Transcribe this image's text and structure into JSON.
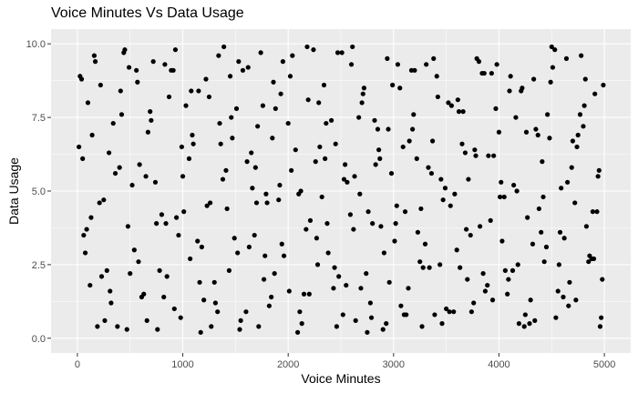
{
  "chart_data": {
    "type": "scatter",
    "title": "Voice Minutes Vs Data Usage",
    "xlabel": "Voice Minutes",
    "ylabel": "Data Usage",
    "xlim": [
      -250,
      5250
    ],
    "ylim": [
      -0.5,
      10.5
    ],
    "x_ticks": [
      0,
      1000,
      2000,
      3000,
      4000,
      5000
    ],
    "y_ticks": [
      0,
      2.5,
      5,
      7.5,
      10
    ],
    "x_tick_labels": [
      "0",
      "1000",
      "2000",
      "3000",
      "4000",
      "5000"
    ],
    "y_tick_labels": [
      "0.0",
      "2.5",
      "5.0",
      "7.5",
      "10.0"
    ],
    "grid": true,
    "legend": "none",
    "background_color": "#ebebeb",
    "grid_color": "#ffffff",
    "point_color": "#000000",
    "x": [
      40,
      88,
      160,
      230,
      300,
      380,
      450,
      520,
      610,
      690,
      760,
      840,
      910,
      990,
      1070,
      1150,
      1230,
      1310,
      1390,
      1470,
      1550,
      1630,
      1710,
      1790,
      1870,
      1950,
      2030,
      2110,
      2190,
      2270,
      2350,
      2430,
      2510,
      2590,
      2670,
      2750,
      2830,
      2910,
      2990,
      3070,
      3150,
      3230,
      3310,
      3390,
      3470,
      3550,
      3630,
      3710,
      3790,
      3870,
      3950,
      4030,
      4110,
      4190,
      4270,
      4350,
      4430,
      4510,
      4590,
      4670,
      4750,
      4830,
      4910,
      4970,
      25,
      120,
      210,
      340,
      470,
      560,
      650,
      780,
      870,
      960,
      1100,
      1200,
      1340,
      1420,
      1510,
      1600,
      1690,
      1780,
      1860,
      1940,
      2070,
      2150,
      2240,
      2320,
      2410,
      2480,
      2560,
      2640,
      2720,
      2800,
      2870,
      2960,
      3040,
      3110,
      3190,
      3270,
      3360,
      3440,
      3520,
      3600,
      3680,
      3760,
      3840,
      3920,
      4000,
      4090,
      4170,
      4250,
      4330,
      4400,
      4480,
      4560,
      4640,
      4720,
      4800,
      4880,
      4950,
      60,
      140,
      260,
      410,
      500,
      590,
      720,
      820,
      940,
      1030,
      1180,
      1270,
      1360,
      1450,
      1520,
      1660,
      1740,
      1820,
      1910,
      2000,
      2090,
      2170,
      2260,
      2340,
      2440,
      2530,
      2610,
      2690,
      2760,
      2850,
      2930,
      3010,
      3090,
      3170,
      3250,
      3330,
      3420,
      3500,
      3580,
      3660,
      3740,
      3820,
      3900,
      3980,
      4060,
      4140,
      4220,
      4300,
      4380,
      4460,
      4540,
      4620,
      4700,
      4780,
      4860,
      4940,
      15,
      100,
      190,
      280,
      360,
      440,
      540,
      630,
      700,
      800,
      890,
      980,
      1060,
      1140,
      1220,
      1300,
      1380,
      1460,
      1540,
      1620,
      1700,
      1770,
      1850,
      1930,
      2010,
      2100,
      2180,
      2280,
      2360,
      2460,
      2540,
      2620,
      2700,
      2780,
      2860,
      2940,
      3020,
      3100,
      3180,
      3260,
      3340,
      3410,
      3490,
      3570,
      3650,
      3730,
      3810,
      3890,
      3970,
      4050,
      4130,
      4210,
      4290,
      4370,
      4450,
      4530,
      4610,
      4690,
      4770,
      4850,
      4930,
      4990,
      75,
      170,
      250,
      320,
      420,
      480,
      570,
      660,
      740,
      850,
      930,
      1010,
      1090,
      1160,
      1250,
      1330,
      1410,
      1490,
      1570,
      1650,
      1720,
      1800,
      1880,
      1960,
      2040,
      2120,
      2200,
      2290,
      2370,
      2450,
      2520,
      2600,
      2680,
      2740,
      2820,
      2900,
      2980,
      3060,
      3140,
      3220,
      3300,
      3380,
      3460,
      3540,
      3620,
      3700,
      3780,
      3860,
      3940,
      4020,
      4100,
      4180,
      4260,
      4340,
      4420,
      4500,
      4580,
      4660,
      4740,
      4820,
      4900,
      4960,
      50,
      130,
      220,
      310,
      400,
      490,
      580,
      670,
      750,
      830,
      920,
      1000,
      1080,
      1170,
      1260,
      1350,
      1440,
      1530,
      1610,
      1680,
      1760,
      1840,
      1920,
      2020,
      2130,
      2210,
      2300,
      2380,
      2470,
      2550,
      2630,
      2710,
      2790,
      2880,
      2950,
      3030,
      3120,
      3200,
      3280,
      3370,
      3450,
      3530,
      3610,
      3690,
      3770,
      3850,
      3930,
      4010,
      4080,
      4160,
      4240,
      4320,
      4410,
      4490,
      4570,
      4650,
      4730,
      4810,
      4890,
      4980
    ],
    "y": [
      8.8,
      3.7,
      9.6,
      2.1,
      6.3,
      0.4,
      9.8,
      5.2,
      1.4,
      7.7,
      0.3,
      3.9,
      9.1,
      6.5,
      2.7,
      8.4,
      4.5,
      1.2,
      9.9,
      6.8,
      0.6,
      3.1,
      7.2,
      4.9,
      2.2,
      9.4,
      5.7,
      0.9,
      8.1,
      3.4,
      6.1,
      1.7,
      9.7,
      4.2,
      7.5,
      0.2,
      5.9,
      2.9,
      8.6,
      1.1,
      6.7,
      3.6,
      9.3,
      0.8,
      4.7,
      7.9,
      2.4,
      5.4,
      9.5,
      1.6,
      6.2,
      3.3,
      8.9,
      0.5,
      4.1,
      7.1,
      2.6,
      9.2,
      5.1,
      1.9,
      6.9,
      3.8,
      8.3,
      0.7,
      8.9,
      1.8,
      4.6,
      7.3,
      0.3,
      9.1,
      5.5,
      2.3,
      8.2,
      3.5,
      6.6,
      1.3,
      9.6,
      4.4,
      7.8,
      0.9,
      5.8,
      2.8,
      8.7,
      3.2,
      6.4,
      1.5,
      9.8,
      4.8,
      7.4,
      2.1,
      5.3,
      0.6,
      8.5,
      3.9,
      6.1,
      1.9,
      9.3,
      4.3,
      7.6,
      0.4,
      5.6,
      2.5,
      8.0,
      3.0,
      6.3,
      1.2,
      9.0,
      4.0,
      7.0,
      2.0,
      5.0,
      0.8,
      8.8,
      3.6,
      6.8,
      1.6,
      9.5,
      4.6,
      7.2,
      2.7,
      5.7,
      3.5,
      6.9,
      0.6,
      8.4,
      2.2,
      5.9,
      9.4,
      1.4,
      4.1,
      7.9,
      3.1,
      0.4,
      6.6,
      8.9,
      2.9,
      5.1,
      9.7,
      1.1,
      4.7,
      7.3,
      0.2,
      3.7,
      6.0,
      8.6,
      2.4,
      5.4,
      9.9,
      1.7,
      4.3,
      7.1,
      0.5,
      3.3,
      6.5,
      9.1,
      2.6,
      5.8,
      8.2,
      1.0,
      4.9,
      7.7,
      0.9,
      3.8,
      6.2,
      9.3,
      2.3,
      5.2,
      8.5,
      1.3,
      4.4,
      7.6,
      0.7,
      3.4,
      6.7,
      9.6,
      2.8,
      5.5,
      6.5,
      8.0,
      0.4,
      2.3,
      5.6,
      9.7,
      3.0,
      1.5,
      7.4,
      4.2,
      9.1,
      0.7,
      6.1,
      3.3,
      8.8,
      1.9,
      5.4,
      7.5,
      0.3,
      9.2,
      4.6,
      2.0,
      6.8,
      8.3,
      1.6,
      4.9,
      9.9,
      2.5,
      7.3,
      0.4,
      5.9,
      3.7,
      8.0,
      1.2,
      6.4,
      9.5,
      3.9,
      0.8,
      7.1,
      4.4,
      2.4,
      8.9,
      5.1,
      0.9,
      6.6,
      3.5,
      9.4,
      1.8,
      7.8,
      4.8,
      2.3,
      8.4,
      0.5,
      6.9,
      3.1,
      9.8,
      1.4,
      5.8,
      7.6,
      2.6,
      4.3,
      8.6,
      2.9,
      9.4,
      4.7,
      1.2,
      7.6,
      3.8,
      8.7,
      0.6,
      5.3,
      2.1,
      9.8,
      4.3,
      6.9,
      1.9,
      8.2,
      0.9,
      5.7,
      3.4,
      9.1,
      6.3,
      0.4,
      4.6,
      7.8,
      2.8,
      9.6,
      5.0,
      1.5,
      8.0,
      3.9,
      6.6,
      0.8,
      9.3,
      4.9,
      2.2,
      7.4,
      0.3,
      5.6,
      8.5,
      1.7,
      6.1,
      3.2,
      9.5,
      0.5,
      4.5,
      7.7,
      2.0,
      6.2,
      9.0,
      1.3,
      5.3,
      8.4,
      2.5,
      7.0,
      0.6,
      4.8,
      9.9,
      3.6,
      1.1,
      6.5,
      8.8,
      2.7,
      0.4,
      6.1,
      4.1,
      8.6,
      1.6,
      5.8,
      9.2,
      2.6,
      7.0,
      3.9,
      9.3,
      1.0,
      5.5,
      8.4,
      0.2,
      4.6,
      7.3,
      2.3,
      9.4,
      6.0,
      3.5,
      7.9,
      1.4,
      5.2,
      8.9,
      0.5,
      4.0,
      6.5,
      2.9,
      9.7,
      1.8,
      5.5,
      8.3,
      0.7,
      3.8,
      7.1,
      4.5,
      0.8,
      9.1,
      2.4,
      6.7,
      5.4,
      0.9,
      8.1,
      3.7,
      6.4,
      2.2,
      9.0,
      4.8,
      1.5,
      7.5,
      0.4,
      3.2,
      6.0,
      8.7,
      2.5,
      5.3,
      1.3,
      7.9,
      4.3,
      2.0
    ]
  }
}
